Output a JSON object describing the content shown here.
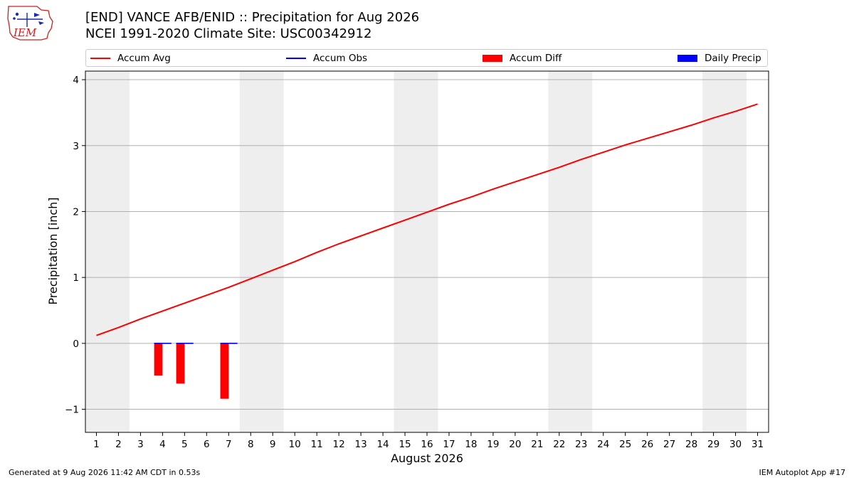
{
  "logo": {
    "text": "IEM"
  },
  "header": {
    "title_line1": "[END] VANCE AFB/ENID :: Precipitation for Aug 2026",
    "title_line2": "NCEI 1991-2020 Climate Site: USC00342912"
  },
  "legend": {
    "items": [
      {
        "label": "Accum Avg",
        "kind": "line",
        "color": "#ff0000"
      },
      {
        "label": "Accum Obs",
        "kind": "line",
        "color": "#0000ff"
      },
      {
        "label": "Accum Diff",
        "kind": "patch",
        "color": "#ff0000"
      },
      {
        "label": "Daily Precip",
        "kind": "patch",
        "color": "#0000ff"
      }
    ]
  },
  "footer": {
    "left": "Generated at 9 Aug 2026 11:42 AM CDT in 0.53s",
    "right": "IEM Autoplot App #17"
  },
  "chart_data": {
    "type": "line",
    "xlabel": "August 2026",
    "ylabel": "Precipitation [inch]",
    "xlim": [
      0.5,
      31.5
    ],
    "ylim": [
      -1.35,
      4.13
    ],
    "yticks": [
      -1,
      0,
      1,
      2,
      3,
      4
    ],
    "ytick_labels": [
      "−1",
      "0",
      "1",
      "2",
      "3",
      "4"
    ],
    "x": [
      1,
      2,
      3,
      4,
      5,
      6,
      7,
      8,
      9,
      10,
      11,
      12,
      13,
      14,
      15,
      16,
      17,
      18,
      19,
      20,
      21,
      22,
      23,
      24,
      25,
      26,
      27,
      28,
      29,
      30,
      31
    ],
    "grid": "horizontal",
    "weekend_shading": [
      [
        0.5,
        2.5
      ],
      [
        7.5,
        9.5
      ],
      [
        14.5,
        16.5
      ],
      [
        21.5,
        23.5
      ],
      [
        28.5,
        30.5
      ]
    ],
    "shade_color": "#eeeeee",
    "series": [
      {
        "name": "Accum Avg",
        "kind": "line",
        "color": "#ff0000",
        "values": [
          0.12,
          0.24,
          0.37,
          0.49,
          0.61,
          0.73,
          0.85,
          0.98,
          1.11,
          1.24,
          1.38,
          1.51,
          1.63,
          1.75,
          1.87,
          1.99,
          2.11,
          2.22,
          2.34,
          2.45,
          2.56,
          2.67,
          2.79,
          2.9,
          3.01,
          3.11,
          3.21,
          3.31,
          3.42,
          3.52,
          3.63
        ]
      },
      {
        "name": "Accum Obs",
        "kind": "line",
        "color": "#0000ff",
        "x": [
          4,
          5,
          7
        ],
        "values": [
          0.0,
          0.0,
          0.0
        ]
      },
      {
        "name": "Accum Diff",
        "kind": "bar",
        "color": "#ff0000",
        "x": [
          4,
          5,
          7
        ],
        "values": [
          -0.49,
          -0.61,
          -0.84
        ]
      },
      {
        "name": "Daily Precip",
        "kind": "bar",
        "color": "#0000ff",
        "x": [],
        "values": []
      }
    ]
  }
}
